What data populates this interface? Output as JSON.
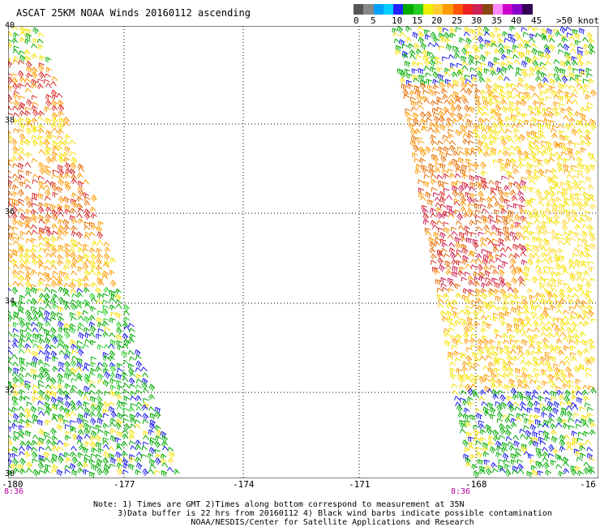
{
  "title": "ASCAT 25KM NOAA Winds 20160112 ascending",
  "legend": {
    "unit_label": "knots",
    "colors": [
      "#555555",
      "#888888",
      "#00a0ff",
      "#00ccff",
      "#2222ff",
      "#00aa00",
      "#22cc22",
      "#eeee00",
      "#ffcc33",
      "#ff9900",
      "#ff5500",
      "#ee2222",
      "#cc2255",
      "#8b4513",
      "#ff88ff",
      "#cc00cc",
      "#8800cc",
      "#330055"
    ],
    "labels": [
      "0",
      "5",
      "10",
      "15",
      "20",
      "25",
      "30",
      "35",
      "40",
      "45",
      ">50 knots"
    ]
  },
  "map": {
    "lat_labels": [
      "40",
      "38",
      "36",
      "34",
      "32",
      "30"
    ],
    "lon_labels": [
      "-180",
      "-177",
      "-174",
      "-171",
      "-168",
      "-16"
    ],
    "pass_times": [
      "8:36",
      "8:36"
    ]
  },
  "notes": {
    "line1": "Note: 1) Times are GMT 2)Times along bottom correspond to measurement at 35N",
    "line2": "3)Data buffer is 22 hrs from 20160112 4) Black wind barbs indicate possible contamination",
    "line3": "NOAA/NESDIS/Center for Satellite Applications and Research"
  }
}
